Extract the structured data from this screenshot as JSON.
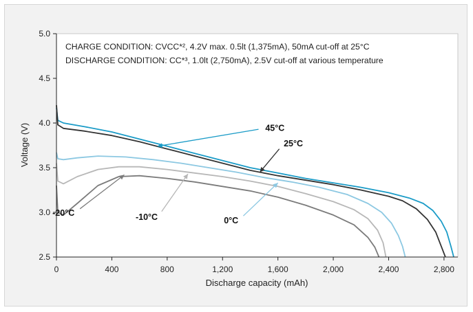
{
  "chart_data": {
    "type": "line",
    "title": "",
    "xlabel": "Discharge capacity (mAh)",
    "ylabel": "Voltage (V)",
    "xlim": [
      0,
      2900
    ],
    "ylim": [
      2.5,
      5.0
    ],
    "x_ticks": [
      0,
      400,
      800,
      1200,
      1600,
      2000,
      2400,
      2800
    ],
    "x_tick_labels": [
      "0",
      "400",
      "800",
      "1,200",
      "1,600",
      "2,000",
      "2,400",
      "2,800"
    ],
    "y_ticks": [
      2.5,
      3.0,
      3.5,
      4.0,
      4.5,
      5.0
    ],
    "y_tick_labels": [
      "2.5",
      "3.0",
      "3.5",
      "4.0",
      "4.5",
      "5.0"
    ],
    "grid": false,
    "annotations": [
      "CHARGE CONDITION: CVCC*², 4.2V max. 0.5lt (1,375mA), 50mA cut-off at 25°C",
      "DISCHARGE CONDITION: CC*³, 1.0lt (2,750mA), 2.5V cut-off at various temperature"
    ],
    "series": [
      {
        "name": "45°C",
        "color": "#1a9bc7",
        "label_anchor": [
          1460,
          3.93
        ],
        "pointer_to": [
          730,
          3.74
        ],
        "points": [
          [
            0,
            4.17
          ],
          [
            10,
            4.03
          ],
          [
            50,
            4.0
          ],
          [
            200,
            3.96
          ],
          [
            400,
            3.9
          ],
          [
            600,
            3.82
          ],
          [
            800,
            3.74
          ],
          [
            1000,
            3.66
          ],
          [
            1200,
            3.58
          ],
          [
            1400,
            3.5
          ],
          [
            1600,
            3.44
          ],
          [
            1800,
            3.38
          ],
          [
            2000,
            3.33
          ],
          [
            2200,
            3.28
          ],
          [
            2400,
            3.22
          ],
          [
            2550,
            3.16
          ],
          [
            2650,
            3.1
          ],
          [
            2720,
            3.02
          ],
          [
            2780,
            2.9
          ],
          [
            2820,
            2.78
          ],
          [
            2850,
            2.62
          ],
          [
            2870,
            2.5
          ]
        ]
      },
      {
        "name": "25°C",
        "color": "#333333",
        "label_anchor": [
          1610,
          3.71
        ],
        "pointer_to": [
          1470,
          3.45
        ],
        "points": [
          [
            0,
            4.2
          ],
          [
            10,
            3.98
          ],
          [
            50,
            3.94
          ],
          [
            200,
            3.91
          ],
          [
            400,
            3.86
          ],
          [
            600,
            3.79
          ],
          [
            800,
            3.71
          ],
          [
            1000,
            3.63
          ],
          [
            1200,
            3.55
          ],
          [
            1400,
            3.47
          ],
          [
            1600,
            3.41
          ],
          [
            1800,
            3.36
          ],
          [
            2000,
            3.31
          ],
          [
            2200,
            3.25
          ],
          [
            2400,
            3.18
          ],
          [
            2500,
            3.13
          ],
          [
            2600,
            3.04
          ],
          [
            2680,
            2.92
          ],
          [
            2740,
            2.78
          ],
          [
            2780,
            2.62
          ],
          [
            2810,
            2.5
          ]
        ]
      },
      {
        "name": "0°C",
        "color": "#8cc8e2",
        "label_anchor": [
          1350,
          2.96
        ],
        "pointer_to": [
          1600,
          3.33
        ],
        "points": [
          [
            0,
            3.67
          ],
          [
            10,
            3.6
          ],
          [
            50,
            3.59
          ],
          [
            150,
            3.61
          ],
          [
            300,
            3.63
          ],
          [
            500,
            3.62
          ],
          [
            700,
            3.59
          ],
          [
            900,
            3.55
          ],
          [
            1100,
            3.5
          ],
          [
            1300,
            3.45
          ],
          [
            1500,
            3.39
          ],
          [
            1700,
            3.34
          ],
          [
            1900,
            3.28
          ],
          [
            2100,
            3.2
          ],
          [
            2250,
            3.1
          ],
          [
            2350,
            3.0
          ],
          [
            2420,
            2.88
          ],
          [
            2470,
            2.74
          ],
          [
            2500,
            2.62
          ],
          [
            2520,
            2.5
          ]
        ]
      },
      {
        "name": "-10°C",
        "color": "#b7b7b7",
        "label_anchor": [
          760,
          3.01
        ],
        "pointer_to": [
          950,
          3.43
        ],
        "points": [
          [
            0,
            3.55
          ],
          [
            10,
            3.35
          ],
          [
            50,
            3.32
          ],
          [
            150,
            3.4
          ],
          [
            300,
            3.48
          ],
          [
            450,
            3.51
          ],
          [
            600,
            3.51
          ],
          [
            800,
            3.48
          ],
          [
            1000,
            3.44
          ],
          [
            1200,
            3.4
          ],
          [
            1400,
            3.35
          ],
          [
            1600,
            3.29
          ],
          [
            1800,
            3.21
          ],
          [
            2000,
            3.12
          ],
          [
            2150,
            3.03
          ],
          [
            2250,
            2.93
          ],
          [
            2320,
            2.8
          ],
          [
            2360,
            2.66
          ],
          [
            2380,
            2.5
          ]
        ]
      },
      {
        "name": "-20°C",
        "color": "#7b7b7b",
        "label_anchor": [
          170,
          3.04
        ],
        "pointer_to": [
          490,
          3.42
        ],
        "points": [
          [
            0,
            3.3
          ],
          [
            10,
            3.0
          ],
          [
            50,
            2.97
          ],
          [
            150,
            3.1
          ],
          [
            300,
            3.3
          ],
          [
            450,
            3.4
          ],
          [
            600,
            3.41
          ],
          [
            800,
            3.38
          ],
          [
            1000,
            3.34
          ],
          [
            1200,
            3.29
          ],
          [
            1400,
            3.24
          ],
          [
            1600,
            3.17
          ],
          [
            1800,
            3.08
          ],
          [
            2000,
            2.97
          ],
          [
            2150,
            2.86
          ],
          [
            2250,
            2.72
          ],
          [
            2300,
            2.61
          ],
          [
            2330,
            2.5
          ]
        ]
      }
    ]
  }
}
